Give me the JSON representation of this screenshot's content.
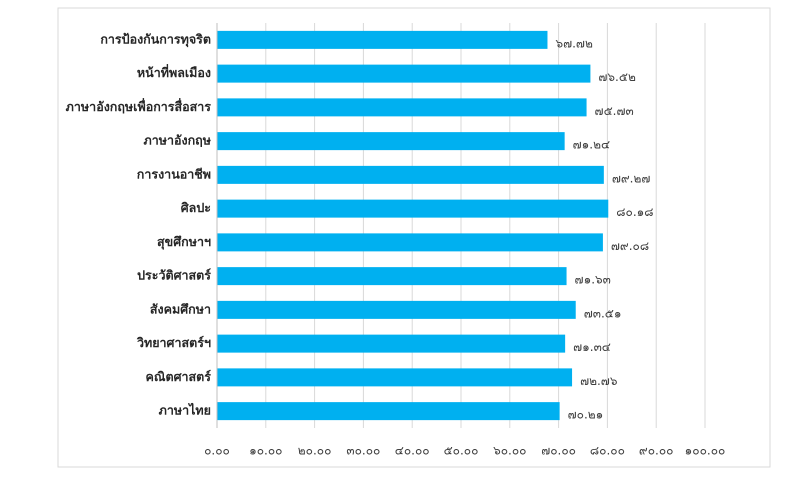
{
  "chart_data": {
    "type": "bar",
    "orientation": "horizontal",
    "color": "#00b0f0",
    "grid": true,
    "categories": [
      "การป้องกันการทุจริต",
      "หน้าที่พลเมือง",
      "ภาษาอังกฤษเพื่อการสื่อสาร",
      "ภาษาอังกฤษ",
      "การงานอาชีพ",
      "ศิลปะ",
      "สุขศึกษาฯ",
      "ประวัติศาสตร์",
      "สังคมศึกษา",
      "วิทยาศาสตร์ฯ",
      "คณิตศาสตร์",
      "ภาษาไทย"
    ],
    "values": [
      67.72,
      76.52,
      75.73,
      71.24,
      79.27,
      80.18,
      79.08,
      71.63,
      73.51,
      71.34,
      72.76,
      70.21
    ],
    "value_labels": [
      "๖๗.๗๒",
      "๗๖.๕๒",
      "๗๕.๗๓",
      "๗๑.๒๔",
      "๗๙.๒๗",
      "๘๐.๑๘",
      "๗๙.๐๘",
      "๗๑.๖๓",
      "๗๓.๕๑",
      "๗๑.๓๔",
      "๗๒.๗๖",
      "๗๐.๒๑"
    ],
    "xlim": [
      0,
      100
    ],
    "xticks": [
      {
        "value": 0,
        "label": "๐.๐๐"
      },
      {
        "value": 10,
        "label": "๑๐.๐๐"
      },
      {
        "value": 20,
        "label": "๒๐.๐๐"
      },
      {
        "value": 30,
        "label": "๓๐.๐๐"
      },
      {
        "value": 40,
        "label": "๔๐.๐๐"
      },
      {
        "value": 50,
        "label": "๕๐.๐๐"
      },
      {
        "value": 60,
        "label": "๖๐.๐๐"
      },
      {
        "value": 70,
        "label": "๗๐.๐๐"
      },
      {
        "value": 80,
        "label": "๘๐.๐๐"
      },
      {
        "value": 90,
        "label": "๙๐.๐๐"
      },
      {
        "value": 100,
        "label": "๑๐๐.๐๐"
      }
    ]
  }
}
